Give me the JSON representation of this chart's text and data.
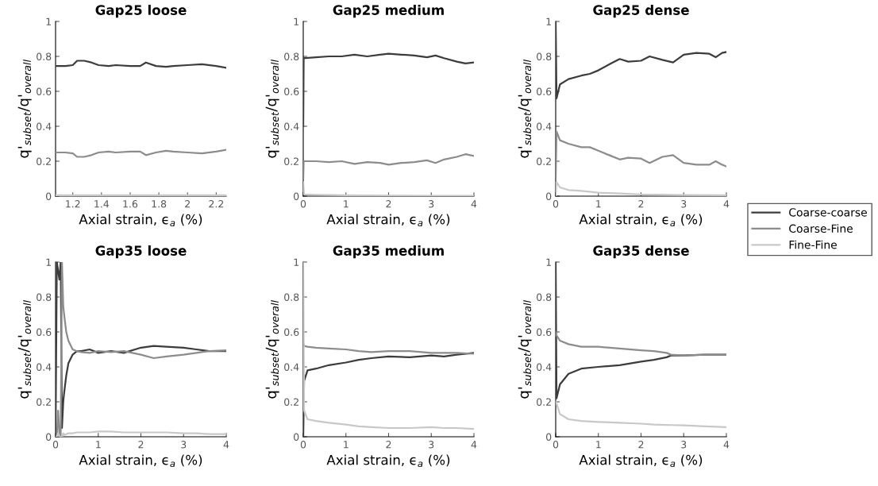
{
  "chart_data": [
    {
      "type": "line",
      "title": "Gap25 loose",
      "xlabel": "Axial strain, ϵ$_{a}$ (%)",
      "ylabel": "q'$_{subset}$/q'$_{overall}$",
      "xlim": [
        1.08,
        2.27
      ],
      "xticks": [
        1.2,
        1.4,
        1.6,
        1.8,
        2,
        2.2
      ],
      "ylim": [
        0,
        1
      ],
      "yticks": [
        0,
        0.2,
        0.4,
        0.6,
        0.8,
        1
      ],
      "series": [
        {
          "color": "#3c3c3c",
          "x": [
            1.08,
            1.15,
            1.2,
            1.23,
            1.28,
            1.33,
            1.38,
            1.45,
            1.5,
            1.6,
            1.67,
            1.71,
            1.78,
            1.85,
            1.9,
            2.0,
            2.1,
            2.2,
            2.27
          ],
          "values": [
            0.745,
            0.745,
            0.75,
            0.775,
            0.775,
            0.765,
            0.75,
            0.745,
            0.75,
            0.745,
            0.745,
            0.765,
            0.745,
            0.74,
            0.745,
            0.75,
            0.755,
            0.745,
            0.735
          ]
        },
        {
          "color": "#8c8c8c",
          "x": [
            1.08,
            1.15,
            1.2,
            1.23,
            1.28,
            1.33,
            1.38,
            1.45,
            1.5,
            1.6,
            1.67,
            1.71,
            1.78,
            1.85,
            1.9,
            2.0,
            2.1,
            2.2,
            2.27
          ],
          "values": [
            0.25,
            0.25,
            0.245,
            0.225,
            0.225,
            0.235,
            0.25,
            0.255,
            0.25,
            0.255,
            0.255,
            0.235,
            0.25,
            0.26,
            0.255,
            0.25,
            0.245,
            0.255,
            0.265
          ]
        },
        {
          "color": "#c8c8c8",
          "x": [
            1.08,
            1.5,
            2.0,
            2.27
          ],
          "values": [
            0.005,
            0.005,
            0.005,
            0.005
          ]
        }
      ]
    },
    {
      "type": "line",
      "title": "Gap25 medium",
      "xlabel": "Axial strain, ϵ$_{a}$ (%)",
      "ylabel": "q'$_{subset}$/q'$_{overall}$",
      "xlim": [
        0,
        4
      ],
      "xticks": [
        0,
        1,
        2,
        3,
        4
      ],
      "ylim": [
        0,
        1
      ],
      "yticks": [
        0,
        0.2,
        0.4,
        0.6,
        0.8,
        1
      ],
      "series": [
        {
          "color": "#3c3c3c",
          "x": [
            0,
            0.01,
            0.05,
            0.3,
            0.6,
            0.9,
            1.2,
            1.5,
            1.8,
            2.0,
            2.3,
            2.6,
            2.9,
            3.1,
            3.3,
            3.6,
            3.8,
            4.0
          ],
          "values": [
            0.4,
            0.79,
            0.79,
            0.795,
            0.8,
            0.8,
            0.81,
            0.8,
            0.81,
            0.815,
            0.81,
            0.805,
            0.795,
            0.805,
            0.79,
            0.77,
            0.76,
            0.765
          ]
        },
        {
          "color": "#8c8c8c",
          "x": [
            0,
            0.01,
            0.05,
            0.3,
            0.6,
            0.9,
            1.2,
            1.5,
            1.8,
            2.0,
            2.3,
            2.6,
            2.9,
            3.1,
            3.3,
            3.6,
            3.8,
            4.0
          ],
          "values": [
            0.1,
            0.2,
            0.2,
            0.2,
            0.195,
            0.2,
            0.185,
            0.195,
            0.19,
            0.18,
            0.19,
            0.195,
            0.205,
            0.19,
            0.21,
            0.225,
            0.24,
            0.23
          ]
        },
        {
          "color": "#c8c8c8",
          "x": [
            0,
            0.02,
            0.3,
            1.0,
            2.0,
            3.0,
            4.0
          ],
          "values": [
            0.08,
            0.01,
            0.008,
            0.005,
            0.003,
            0.002,
            0.002
          ]
        }
      ]
    },
    {
      "type": "line",
      "title": "Gap25 dense",
      "xlabel": "Axial strain, ϵ$_{a}$ (%)",
      "ylabel": "q'$_{subset}$/q'$_{overall}$",
      "xlim": [
        0,
        4
      ],
      "xticks": [
        0,
        1,
        2,
        3,
        4
      ],
      "ylim": [
        0,
        1
      ],
      "yticks": [
        0,
        0.2,
        0.4,
        0.6,
        0.8,
        1
      ],
      "legend": "right",
      "series": [
        {
          "name": "Coarse-coarse",
          "color": "#3c3c3c",
          "x": [
            0,
            0.02,
            0.1,
            0.3,
            0.6,
            0.8,
            1.0,
            1.3,
            1.5,
            1.7,
            2.0,
            2.2,
            2.5,
            2.75,
            3.0,
            3.3,
            3.6,
            3.75,
            3.9,
            4.0
          ],
          "values": [
            1.0,
            0.56,
            0.64,
            0.67,
            0.69,
            0.7,
            0.72,
            0.76,
            0.785,
            0.77,
            0.775,
            0.8,
            0.78,
            0.765,
            0.81,
            0.82,
            0.815,
            0.795,
            0.82,
            0.825
          ]
        },
        {
          "name": "Coarse-Fine",
          "color": "#8c8c8c",
          "x": [
            0,
            0.02,
            0.1,
            0.3,
            0.6,
            0.8,
            1.0,
            1.3,
            1.5,
            1.7,
            2.0,
            2.2,
            2.5,
            2.75,
            3.0,
            3.3,
            3.6,
            3.75,
            3.9,
            4.0
          ],
          "values": [
            0.1,
            0.37,
            0.32,
            0.3,
            0.28,
            0.28,
            0.26,
            0.23,
            0.21,
            0.22,
            0.215,
            0.19,
            0.225,
            0.235,
            0.19,
            0.18,
            0.18,
            0.2,
            0.18,
            0.17
          ]
        },
        {
          "name": "Fine-Fine",
          "color": "#c8c8c8",
          "x": [
            0,
            0.02,
            0.1,
            0.3,
            0.6,
            1.0,
            1.5,
            2.0,
            3.0,
            4.0
          ],
          "values": [
            0.0,
            0.08,
            0.05,
            0.035,
            0.03,
            0.02,
            0.015,
            0.01,
            0.006,
            0.005
          ]
        }
      ]
    },
    {
      "type": "line",
      "title": "Gap35 loose",
      "xlabel": "Axial strain, ϵ$_{a}$ (%)",
      "ylabel": "q'$_{subset}$/q'$_{overall}$",
      "xlim": [
        0,
        4
      ],
      "xticks": [
        0,
        1,
        2,
        3,
        4
      ],
      "ylim": [
        0,
        1
      ],
      "yticks": [
        0,
        0.2,
        0.4,
        0.6,
        0.8,
        1
      ],
      "series": [
        {
          "color": "#3c3c3c",
          "x": [
            0,
            0.03,
            0.06,
            0.09,
            0.12,
            0.15,
            0.18,
            0.2,
            0.25,
            0.3,
            0.4,
            0.5,
            0.6,
            0.8,
            1.0,
            1.3,
            1.6,
            2.0,
            2.3,
            2.6,
            3.0,
            3.3,
            3.6,
            4.0
          ],
          "values": [
            0,
            1.0,
            0.95,
            0.9,
            1.0,
            0.05,
            0.2,
            0.25,
            0.35,
            0.42,
            0.47,
            0.49,
            0.49,
            0.5,
            0.48,
            0.49,
            0.48,
            0.51,
            0.52,
            0.515,
            0.51,
            0.5,
            0.49,
            0.49
          ]
        },
        {
          "color": "#8c8c8c",
          "x": [
            0,
            0.03,
            0.06,
            0.09,
            0.12,
            0.15,
            0.18,
            0.2,
            0.25,
            0.3,
            0.4,
            0.5,
            0.6,
            0.8,
            1.0,
            1.3,
            1.6,
            2.0,
            2.3,
            2.6,
            3.0,
            3.3,
            3.6,
            4.0
          ],
          "values": [
            0,
            0.0,
            0.15,
            0.02,
            0.0,
            1.0,
            0.75,
            0.7,
            0.6,
            0.55,
            0.5,
            0.49,
            0.485,
            0.48,
            0.49,
            0.485,
            0.49,
            0.47,
            0.45,
            0.46,
            0.47,
            0.48,
            0.49,
            0.495
          ]
        },
        {
          "color": "#c8c8c8",
          "x": [
            0,
            0.03,
            0.06,
            0.09,
            0.12,
            0.15,
            0.18,
            0.2,
            0.25,
            0.3,
            0.4,
            0.5,
            0.6,
            0.8,
            1.0,
            1.3,
            1.6,
            2.0,
            2.3,
            2.6,
            3.0,
            3.3,
            3.6,
            4.0
          ],
          "values": [
            0.0,
            0.0,
            0.02,
            0.0,
            0.0,
            0.0,
            0.02,
            0.01,
            0.015,
            0.02,
            0.02,
            0.025,
            0.025,
            0.025,
            0.03,
            0.03,
            0.025,
            0.025,
            0.025,
            0.025,
            0.02,
            0.02,
            0.015,
            0.015
          ]
        }
      ]
    },
    {
      "type": "line",
      "title": "Gap35 medium",
      "xlabel": "Axial strain, ϵ$_{a}$ (%)",
      "ylabel": "q'$_{subset}$/q'$_{overall}$",
      "xlim": [
        0,
        4
      ],
      "xticks": [
        0,
        1,
        2,
        3,
        4
      ],
      "ylim": [
        0,
        1
      ],
      "yticks": [
        0,
        0.2,
        0.4,
        0.6,
        0.8,
        1
      ],
      "series": [
        {
          "color": "#3c3c3c",
          "x": [
            0,
            0.02,
            0.1,
            0.3,
            0.6,
            1.0,
            1.3,
            1.6,
            2.0,
            2.5,
            3.0,
            3.3,
            3.6,
            4.0
          ],
          "values": [
            0.0,
            0.32,
            0.38,
            0.39,
            0.41,
            0.425,
            0.44,
            0.45,
            0.46,
            0.455,
            0.465,
            0.46,
            0.47,
            0.48
          ]
        },
        {
          "color": "#8c8c8c",
          "x": [
            0,
            0.02,
            0.1,
            0.3,
            0.6,
            1.0,
            1.3,
            1.6,
            2.0,
            2.5,
            3.0,
            3.3,
            3.6,
            4.0
          ],
          "values": [
            0.54,
            0.52,
            0.515,
            0.51,
            0.505,
            0.5,
            0.49,
            0.485,
            0.49,
            0.49,
            0.48,
            0.48,
            0.48,
            0.475
          ]
        },
        {
          "color": "#c8c8c8",
          "x": [
            0,
            0.02,
            0.1,
            0.3,
            0.6,
            1.0,
            1.3,
            1.6,
            2.0,
            2.5,
            3.0,
            3.3,
            3.6,
            4.0
          ],
          "values": [
            1.0,
            0.15,
            0.1,
            0.09,
            0.08,
            0.07,
            0.06,
            0.055,
            0.05,
            0.05,
            0.055,
            0.05,
            0.05,
            0.045
          ]
        }
      ]
    },
    {
      "type": "line",
      "title": "Gap35 dense",
      "xlabel": "Axial strain, ϵ$_{a}$ (%)",
      "ylabel": "q'$_{subset}$/q'$_{overall}$",
      "xlim": [
        0,
        4
      ],
      "xticks": [
        0,
        1,
        2,
        3,
        4
      ],
      "ylim": [
        0,
        1
      ],
      "yticks": [
        0,
        0.2,
        0.4,
        0.6,
        0.8,
        1
      ],
      "series": [
        {
          "color": "#3c3c3c",
          "x": [
            0,
            0.02,
            0.1,
            0.3,
            0.6,
            1.0,
            1.5,
            2.0,
            2.3,
            2.6,
            2.7,
            3.0,
            3.5,
            4.0
          ],
          "values": [
            1.0,
            0.22,
            0.3,
            0.36,
            0.39,
            0.4,
            0.41,
            0.43,
            0.44,
            0.455,
            0.465,
            0.465,
            0.47,
            0.47
          ]
        },
        {
          "color": "#8c8c8c",
          "x": [
            0,
            0.02,
            0.1,
            0.3,
            0.6,
            1.0,
            1.5,
            2.0,
            2.3,
            2.6,
            2.7,
            3.0,
            3.5,
            4.0
          ],
          "values": [
            0.6,
            0.58,
            0.55,
            0.53,
            0.515,
            0.515,
            0.505,
            0.495,
            0.49,
            0.48,
            0.47,
            0.465,
            0.47,
            0.47
          ]
        },
        {
          "color": "#c8c8c8",
          "x": [
            0,
            0.02,
            0.1,
            0.3,
            0.6,
            1.0,
            1.5,
            2.0,
            2.3,
            2.6,
            2.7,
            3.0,
            3.5,
            4.0
          ],
          "values": [
            0.2,
            0.19,
            0.13,
            0.1,
            0.09,
            0.085,
            0.08,
            0.075,
            0.07,
            0.068,
            0.067,
            0.065,
            0.06,
            0.055
          ]
        }
      ]
    }
  ]
}
